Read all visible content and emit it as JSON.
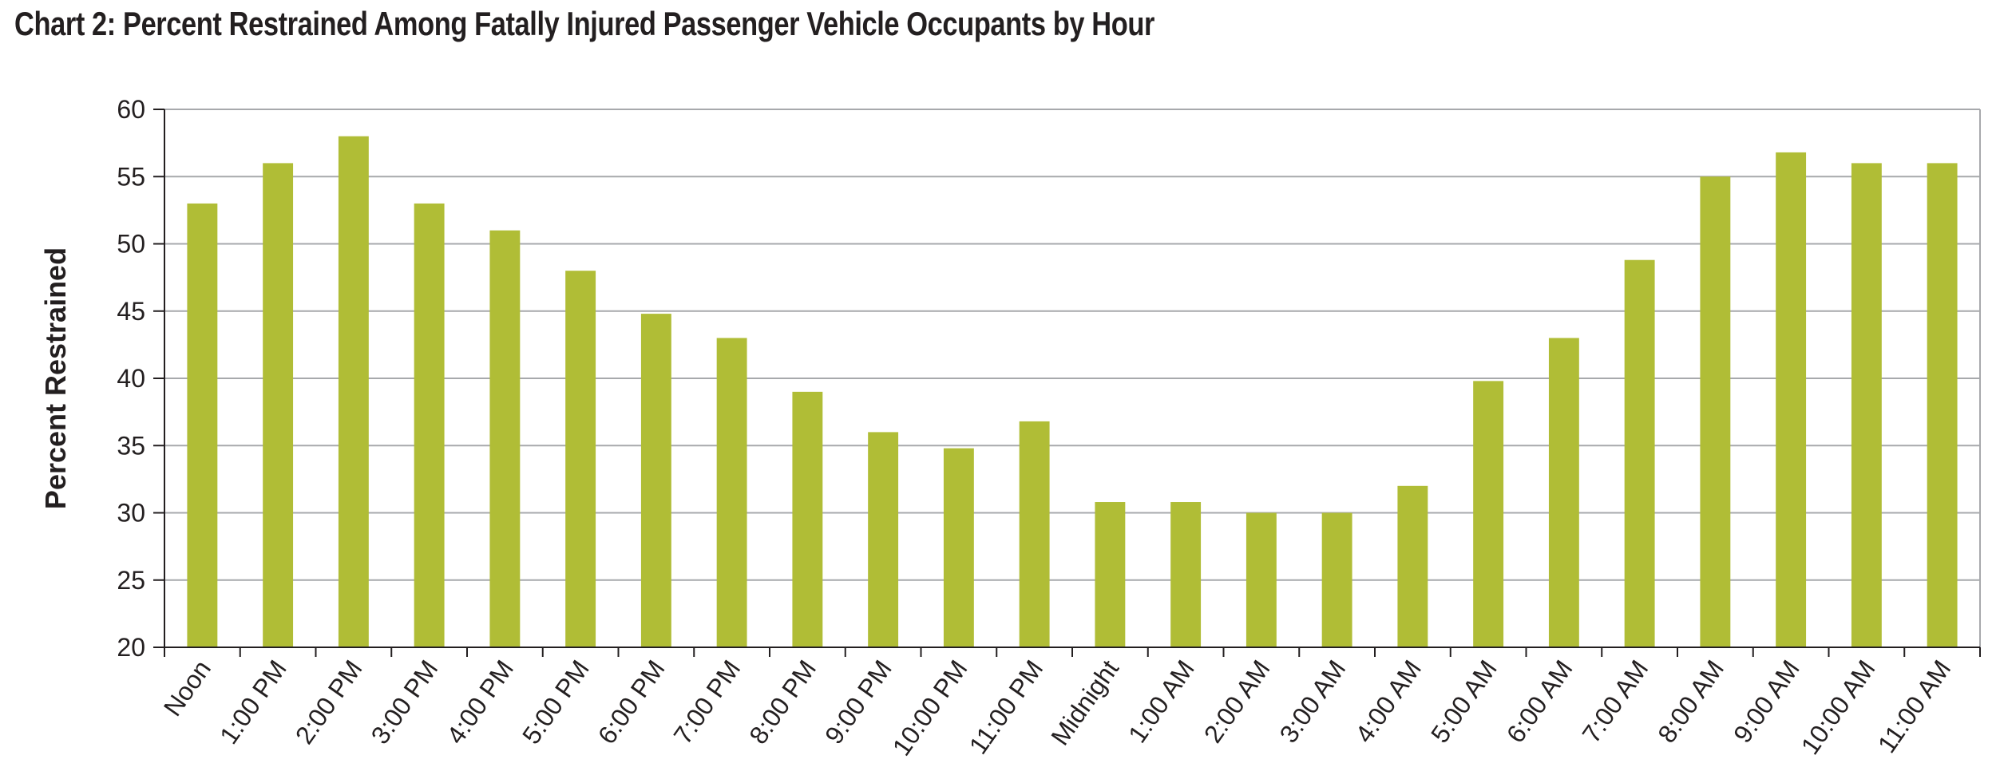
{
  "title": "Chart 2: Percent Restrained Among Fatally Injured Passenger Vehicle Occupants by Hour",
  "colors": {
    "bar": "#b0bd36",
    "grid": "#a7a9ac",
    "axis": "#231f20",
    "text": "#231f20"
  },
  "chart_data": {
    "type": "bar",
    "title": "Chart 2: Percent Restrained Among Fatally Injured Passenger Vehicle Occupants by Hour",
    "xlabel": "",
    "ylabel": "Percent Restrained",
    "ylim": [
      20,
      60
    ],
    "yticks": [
      20,
      25,
      30,
      35,
      40,
      45,
      50,
      55,
      60
    ],
    "grid": true,
    "legend": "none",
    "categories": [
      "Noon",
      "1:00 PM",
      "2:00 PM",
      "3:00 PM",
      "4:00 PM",
      "5:00 PM",
      "6:00 PM",
      "7:00 PM",
      "8:00 PM",
      "9:00 PM",
      "10:00 PM",
      "11:00 PM",
      "Midnight",
      "1:00 AM",
      "2:00 AM",
      "3:00 AM",
      "4:00 AM",
      "5:00 AM",
      "6:00 AM",
      "7:00 AM",
      "8:00 AM",
      "9:00 AM",
      "10:00 AM",
      "11:00 AM"
    ],
    "values": [
      53,
      56,
      58,
      53,
      51,
      48,
      44.8,
      43,
      39,
      36,
      34.8,
      36.8,
      30.8,
      30.8,
      30,
      30,
      32,
      39.8,
      43,
      48.8,
      55,
      56.8,
      56,
      56
    ]
  }
}
